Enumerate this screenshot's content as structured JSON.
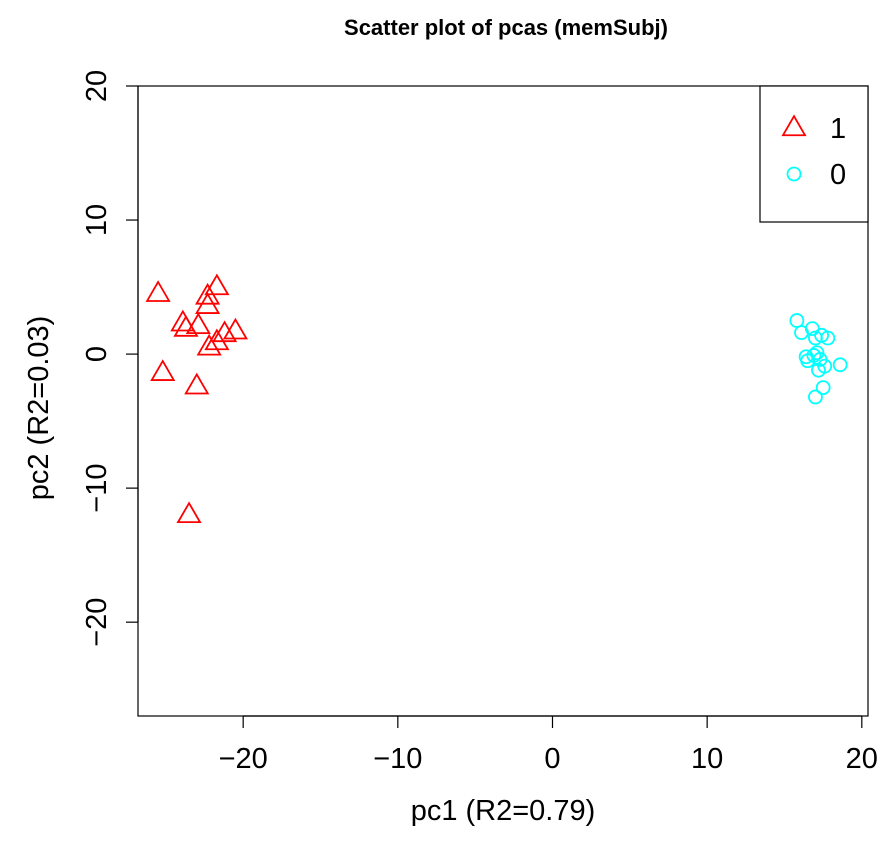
{
  "chart_data": {
    "type": "scatter",
    "title": "Scatter plot of pcas (memSubj)",
    "xlabel": "pc1 (R2=0.79)",
    "ylabel": "pc2 (R2=0.03)",
    "xlim": [
      -26.8,
      20.4
    ],
    "ylim": [
      -27.0,
      20.0
    ],
    "xticks": [
      -20,
      -10,
      0,
      10,
      20
    ],
    "xtick_labels": [
      "−20",
      "−10",
      "0",
      "10",
      "20"
    ],
    "yticks": [
      -20,
      -10,
      0,
      10,
      20
    ],
    "ytick_labels": [
      "−20",
      "−10",
      "0",
      "10",
      "20"
    ],
    "grid": false,
    "legend_position": "top-right",
    "series": [
      {
        "name": "1",
        "marker": "triangle",
        "color": "#ff0000",
        "points": [
          [
            -25.5,
            4.5
          ],
          [
            -23.9,
            2.3
          ],
          [
            -23.7,
            1.9
          ],
          [
            -22.9,
            2.1
          ],
          [
            -22.3,
            4.3
          ],
          [
            -22.3,
            3.6
          ],
          [
            -21.7,
            5.0
          ],
          [
            -22.2,
            0.5
          ],
          [
            -21.7,
            0.9
          ],
          [
            -21.2,
            1.5
          ],
          [
            -20.5,
            1.7
          ],
          [
            -25.2,
            -1.4
          ],
          [
            -23.0,
            -2.4
          ],
          [
            -23.5,
            -12.0
          ]
        ]
      },
      {
        "name": "0",
        "marker": "circle",
        "color": "#00ffff",
        "points": [
          [
            15.8,
            2.5
          ],
          [
            16.1,
            1.6
          ],
          [
            16.8,
            1.9
          ],
          [
            17.0,
            1.2
          ],
          [
            17.4,
            1.4
          ],
          [
            17.8,
            1.2
          ],
          [
            16.4,
            -0.2
          ],
          [
            16.5,
            -0.5
          ],
          [
            16.9,
            -0.1
          ],
          [
            17.1,
            0.1
          ],
          [
            17.3,
            -0.4
          ],
          [
            17.6,
            -0.9
          ],
          [
            17.2,
            -1.2
          ],
          [
            18.6,
            -0.8
          ],
          [
            17.5,
            -2.5
          ],
          [
            17.0,
            -3.2
          ]
        ]
      }
    ]
  }
}
